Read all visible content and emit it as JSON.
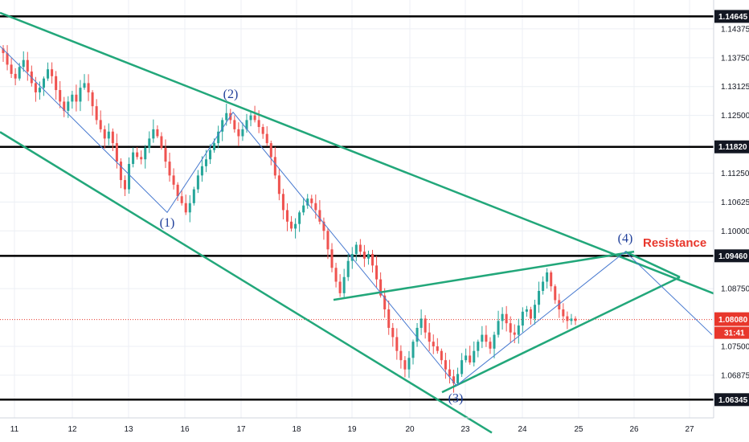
{
  "chart_data": {
    "type": "candlestick",
    "title": "",
    "xlabel": "",
    "ylabel": "",
    "ylim": [
      1.0595,
      1.15
    ],
    "x_ticks": [
      "11",
      "12",
      "13",
      "16",
      "17",
      "18",
      "19",
      "20",
      "23",
      "24",
      "25",
      "26",
      "27"
    ],
    "y_ticks": [
      "1.14375",
      "1.13750",
      "1.13125",
      "1.12500",
      "1.11250",
      "1.10625",
      "1.10000",
      "1.08750",
      "1.07500",
      "1.06875"
    ],
    "grid": true,
    "colors": {
      "up": "#26a69a",
      "down": "#ef5350",
      "level": "#000000",
      "channel": "#22a77a",
      "path": "#4a7bd0",
      "price": "#e8372c"
    },
    "horizontal_levels": [
      {
        "label": "1.14645",
        "value": 1.14645
      },
      {
        "label": "1.11820",
        "value": 1.1182
      },
      {
        "label": "1.09460",
        "value": 1.0946
      },
      {
        "label": "1.06345",
        "value": 1.06345
      }
    ],
    "current_price": {
      "label": "1.08080",
      "value": 1.0808,
      "countdown": "31:41"
    },
    "wave_labels": [
      {
        "label": "(1)",
        "x": "16",
        "y": 1.1018
      },
      {
        "label": "(2)",
        "x": "17",
        "y": 1.1296
      },
      {
        "label": "(3)",
        "x": "23",
        "y": 1.0638
      },
      {
        "label": "(4)",
        "x": "26",
        "y": 1.0984
      }
    ],
    "annotation": "Resistance",
    "wave_path": [
      {
        "x": "11",
        "y": 1.14
      },
      {
        "x": "16",
        "y": 1.104
      },
      {
        "x": "17",
        "y": 1.1257
      },
      {
        "x": "23",
        "y": 1.0665
      },
      {
        "x": "26",
        "y": 1.0955
      },
      {
        "x": "27",
        "y": 1.0775
      }
    ],
    "trendlines": [
      {
        "name": "channel-upper",
        "from": {
          "x": "11",
          "y": 1.146
        },
        "to": {
          "x": "27",
          "y": 1.0885
        }
      },
      {
        "name": "channel-lower",
        "from": {
          "x": "11",
          "y": 1.1195
        },
        "to": {
          "x": "23",
          "y": 1.0598
        }
      },
      {
        "name": "triangle-upper",
        "from": {
          "x": "19",
          "y": 1.0857
        },
        "to": {
          "x": "26",
          "y": 1.0955
        }
      },
      {
        "name": "triangle-lower",
        "from": {
          "x": "23",
          "y": 1.0675
        },
        "to": {
          "x": "27",
          "y": 1.091
        }
      }
    ],
    "series": [
      {
        "values": [
          1.1385,
          1.136,
          1.134,
          1.133,
          1.1355,
          1.137,
          1.1345,
          1.132,
          1.13,
          1.131,
          1.133,
          1.135,
          1.1335,
          1.1305,
          1.128,
          1.126,
          1.128,
          1.1295,
          1.128,
          1.131,
          1.132,
          1.13,
          1.127,
          1.124,
          1.122,
          1.12,
          1.1215,
          1.119,
          1.115,
          1.111,
          1.109,
          1.1145,
          1.117,
          1.116,
          1.1155,
          1.118,
          1.12,
          1.122,
          1.1205,
          1.118,
          1.115,
          1.112,
          1.11,
          1.1075,
          1.106,
          1.104,
          1.106,
          1.109,
          1.112,
          1.114,
          1.1155,
          1.1175,
          1.119,
          1.1215,
          1.124,
          1.1255,
          1.124,
          1.122,
          1.1205,
          1.122,
          1.124,
          1.125,
          1.124,
          1.1225,
          1.121,
          1.119,
          1.116,
          1.112,
          1.108,
          1.1045,
          1.102,
          1.1005,
          1.1015,
          1.104,
          1.1055,
          1.107,
          1.106,
          1.1045,
          1.102,
          1.1,
          1.096,
          1.092,
          1.089,
          1.0865,
          1.09,
          1.0935,
          1.095,
          1.097,
          1.0955,
          1.094,
          1.095,
          1.0925,
          1.0895,
          1.086,
          1.083,
          1.079,
          1.077,
          1.074,
          1.072,
          1.07,
          1.0725,
          1.076,
          1.079,
          1.081,
          1.078,
          1.076,
          1.075,
          1.074,
          1.072,
          1.07,
          1.0685,
          1.067,
          1.069,
          1.072,
          1.073,
          1.0715,
          1.074,
          1.076,
          1.0775,
          1.076,
          1.0745,
          1.0775,
          1.0805,
          1.082,
          1.08,
          1.078,
          1.0775,
          1.0795,
          1.0825,
          1.083,
          1.081,
          1.084,
          1.087,
          1.089,
          1.091,
          1.088,
          1.085,
          1.083,
          1.0815,
          1.0805,
          1.081,
          1.0805
        ]
      }
    ]
  }
}
